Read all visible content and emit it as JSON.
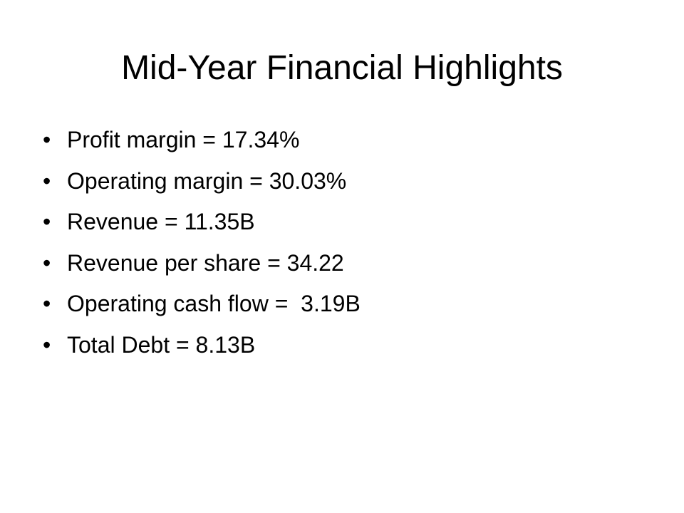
{
  "slide": {
    "title": "Mid-Year Financial Highlights",
    "bullet_glyph": "•",
    "bullets": [
      "Profit margin = 17.34%",
      "Operating margin = 30.03%",
      "Revenue = 11.35B",
      "Revenue per share = 34.22",
      "Operating cash flow =  3.19B",
      "Total Debt = 8.13B"
    ]
  },
  "colors": {
    "background": "#ffffff",
    "text": "#000000"
  }
}
